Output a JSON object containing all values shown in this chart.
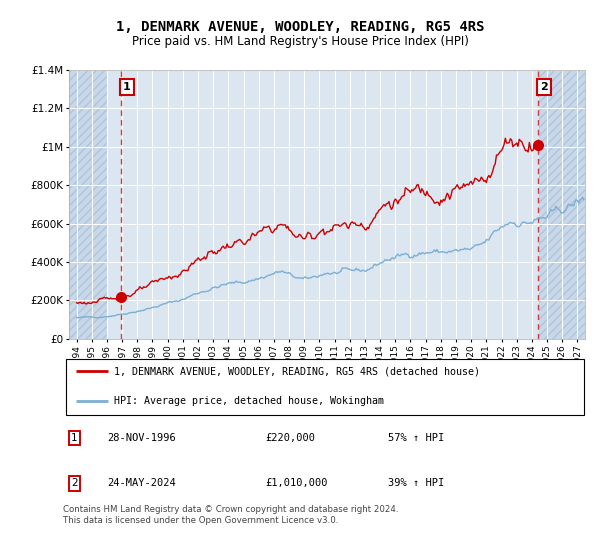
{
  "title": "1, DENMARK AVENUE, WOODLEY, READING, RG5 4RS",
  "subtitle": "Price paid vs. HM Land Registry's House Price Index (HPI)",
  "legend_line1": "1, DENMARK AVENUE, WOODLEY, READING, RG5 4RS (detached house)",
  "legend_line2": "HPI: Average price, detached house, Wokingham",
  "note1_label": "1",
  "note1_date": "28-NOV-1996",
  "note1_price": "£220,000",
  "note1_hpi": "57% ↑ HPI",
  "note2_label": "2",
  "note2_date": "24-MAY-2024",
  "note2_price": "£1,010,000",
  "note2_hpi": "39% ↑ HPI",
  "footer": "Contains HM Land Registry data © Crown copyright and database right 2024.\nThis data is licensed under the Open Government Licence v3.0.",
  "red_line_color": "#cc0000",
  "blue_line_color": "#7bafd4",
  "background_plot": "#dce6f1",
  "background_hatch_color": "#c8d8ea",
  "grid_color": "#ffffff",
  "marker1_x": 1996.91,
  "marker1_y": 220000,
  "marker2_x": 2024.4,
  "marker2_y": 1010000,
  "vline1_x": 1996.91,
  "vline2_x": 2024.4,
  "xlim": [
    1993.5,
    2027.5
  ],
  "ylim": [
    0,
    1400000
  ],
  "yticks": [
    0,
    200000,
    400000,
    600000,
    800000,
    1000000,
    1200000,
    1400000
  ],
  "ytick_labels": [
    "£0",
    "£200K",
    "£400K",
    "£600K",
    "£800K",
    "£1M",
    "£1.2M",
    "£1.4M"
  ],
  "xticks": [
    1994,
    1995,
    1996,
    1997,
    1998,
    1999,
    2000,
    2001,
    2002,
    2003,
    2004,
    2005,
    2006,
    2007,
    2008,
    2009,
    2010,
    2011,
    2012,
    2013,
    2014,
    2015,
    2016,
    2017,
    2018,
    2019,
    2020,
    2021,
    2022,
    2023,
    2024,
    2025,
    2026,
    2027
  ],
  "hatch_left_end": 1996.0,
  "hatch_right_start": 2024.5
}
